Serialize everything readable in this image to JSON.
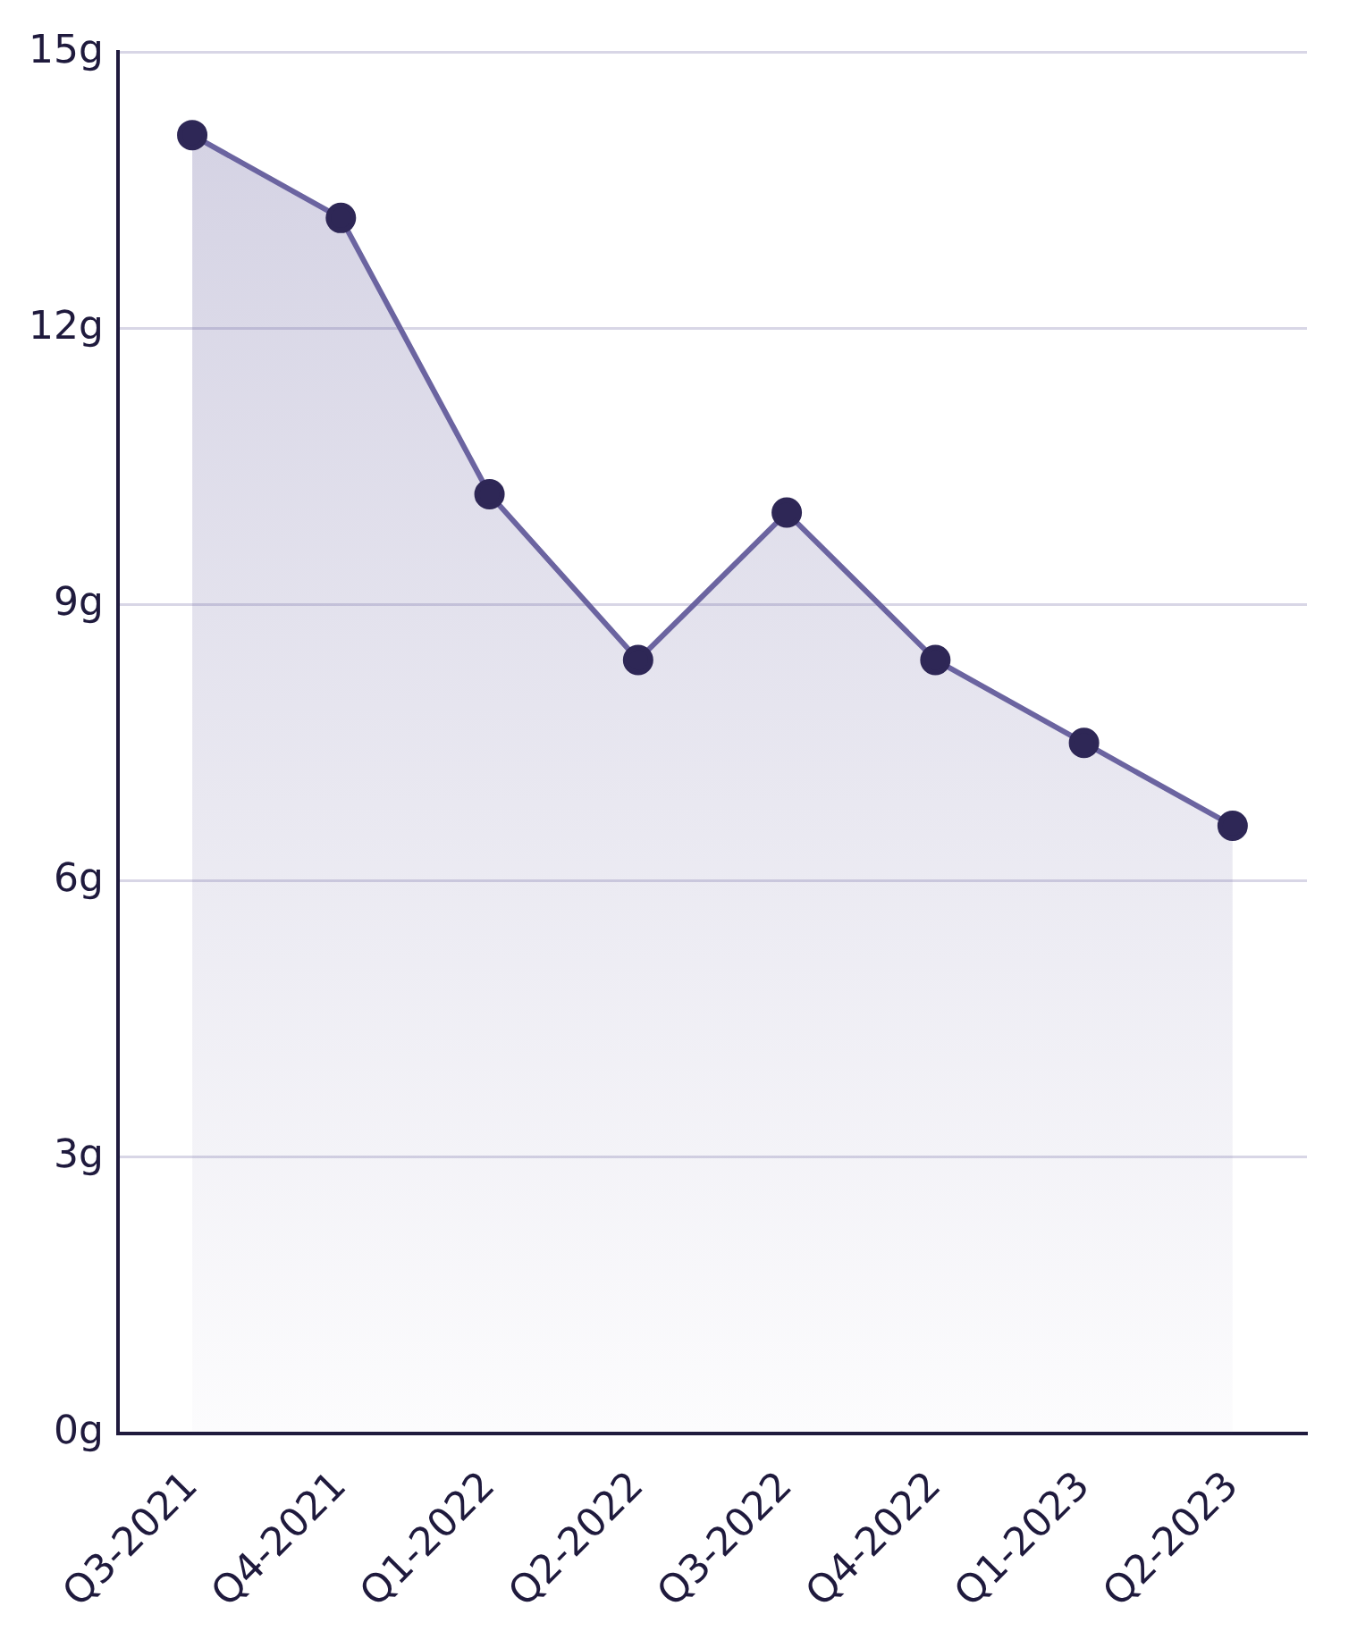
{
  "chart_data": {
    "type": "area",
    "categories": [
      "Q3-2021",
      "Q4-2021",
      "Q1-2022",
      "Q2-2022",
      "Q3-2022",
      "Q4-2022",
      "Q1-2023",
      "Q2-2023"
    ],
    "series": [
      {
        "color": "#6b64a0",
        "values": [
          14.1,
          13.2,
          10.2,
          8.4,
          10.0,
          8.4,
          7.5,
          6.6
        ]
      }
    ],
    "ylim": [
      0,
      15
    ],
    "yticks": [
      {
        "value": 0,
        "label": "0g"
      },
      {
        "value": 3,
        "label": "3g"
      },
      {
        "value": 6,
        "label": "6g"
      },
      {
        "value": 9,
        "label": "9g"
      },
      {
        "value": 12,
        "label": "12g"
      },
      {
        "value": 15,
        "label": "15g"
      }
    ],
    "grid": "y",
    "marker": "circle",
    "legend": false
  }
}
